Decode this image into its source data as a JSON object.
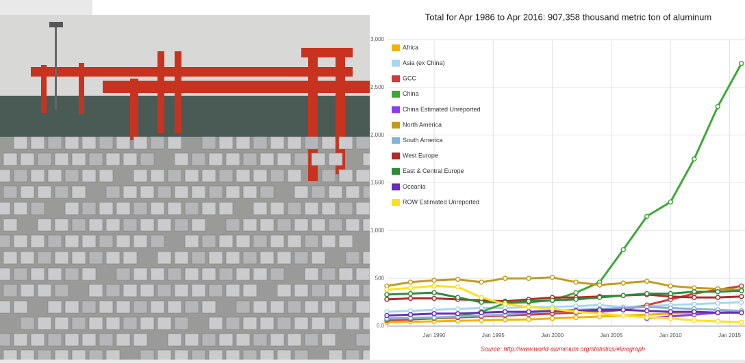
{
  "chart_data": {
    "type": "line",
    "title": "Total for Apr 1986 to Apr 2016: 907,358  thousand metric ton of aluminum",
    "source": "Source: http://www.world-aluminium.org/statistics/#linegraph",
    "x": [
      1986,
      1988,
      1990,
      1992,
      1994,
      1996,
      1998,
      2000,
      2002,
      2004,
      2006,
      2008,
      2010,
      2012,
      2014,
      2016
    ],
    "xlim": [
      1986,
      2016.3
    ],
    "xticks": [
      {
        "value": 1990,
        "label": "Jan 1990"
      },
      {
        "value": 1995,
        "label": "Jan 1995"
      },
      {
        "value": 2000,
        "label": "Jan 2000"
      },
      {
        "value": 2005,
        "label": "Jan 2005"
      },
      {
        "value": 2010,
        "label": "Jan 2010"
      },
      {
        "value": 2015,
        "label": "Jan 2015"
      }
    ],
    "ylim": [
      0,
      3000
    ],
    "yticks": [
      {
        "value": 0,
        "label": "0.0"
      },
      500,
      {
        "value": 1000,
        "label": "1,000"
      },
      {
        "value": 1500,
        "label": "1,500"
      },
      {
        "value": 2000,
        "label": "2,000"
      },
      {
        "value": 2500,
        "label": "2,500"
      },
      {
        "value": 3000,
        "label": "3,000"
      }
    ],
    "grid": true,
    "legend": "top-left",
    "series": [
      {
        "name": "Africa",
        "color": "#f0b400",
        "values": [
          40,
          45,
          50,
          55,
          60,
          65,
          70,
          80,
          90,
          100,
          110,
          120,
          130,
          140,
          140,
          150
        ]
      },
      {
        "name": "Asia (ex China)",
        "color": "#a6d6f2",
        "values": [
          150,
          160,
          170,
          180,
          190,
          190,
          200,
          200,
          210,
          220,
          200,
          210,
          220,
          230,
          240,
          250
        ]
      },
      {
        "name": "GCC",
        "color": "#d23a3c",
        "values": [
          60,
          70,
          80,
          90,
          100,
          110,
          120,
          130,
          140,
          150,
          170,
          220,
          280,
          340,
          380,
          420
        ]
      },
      {
        "name": "China",
        "color": "#3aaa35",
        "values": [
          70,
          80,
          85,
          100,
          150,
          240,
          250,
          270,
          350,
          460,
          800,
          1150,
          1300,
          1750,
          2300,
          2750
        ]
      },
      {
        "name": "China Estimated Unreported",
        "color": "#8a3df0",
        "values": [
          null,
          null,
          null,
          null,
          null,
          null,
          null,
          null,
          null,
          null,
          null,
          80,
          100,
          120,
          140,
          150
        ]
      },
      {
        "name": "North America",
        "color": "#c49a1c",
        "values": [
          420,
          460,
          480,
          490,
          460,
          500,
          500,
          510,
          460,
          430,
          450,
          470,
          420,
          400,
          390,
          380
        ]
      },
      {
        "name": "South America",
        "color": "#86b0d8",
        "values": [
          80,
          85,
          90,
          100,
          110,
          120,
          140,
          160,
          170,
          180,
          190,
          200,
          190,
          180,
          170,
          160
        ]
      },
      {
        "name": "West Europe",
        "color": "#b02a2a",
        "values": [
          280,
          290,
          290,
          280,
          270,
          260,
          280,
          300,
          300,
          310,
          320,
          330,
          310,
          300,
          300,
          310
        ]
      },
      {
        "name": "East & Central Europe",
        "color": "#2e8b3a",
        "values": [
          330,
          340,
          350,
          300,
          250,
          250,
          260,
          270,
          280,
          300,
          320,
          340,
          340,
          360,
          360,
          370
        ]
      },
      {
        "name": "Oceania",
        "color": "#6a2db5",
        "values": [
          110,
          120,
          130,
          130,
          140,
          150,
          150,
          160,
          160,
          170,
          170,
          160,
          150,
          150,
          140,
          140
        ]
      },
      {
        "name": "ROW Estimated Unreported",
        "color": "#ffe020",
        "values": [
          380,
          400,
          420,
          410,
          300,
          230,
          200,
          180,
          150,
          130,
          110,
          90,
          80,
          60,
          50,
          40
        ]
      }
    ]
  }
}
